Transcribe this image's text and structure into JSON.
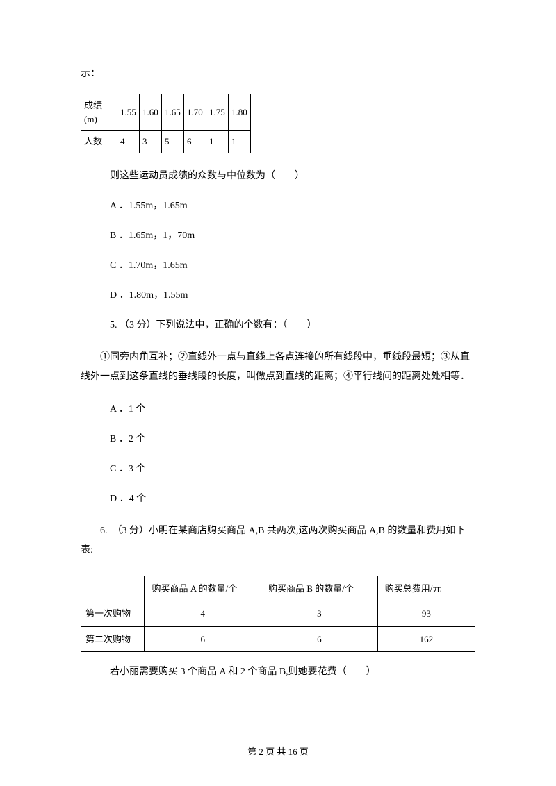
{
  "intro_fragment": "示：",
  "table1": {
    "row1_header": "成绩(m)",
    "row1_cells": [
      "1.55",
      "1.60",
      "1.65",
      "1.70",
      "1.75",
      "1.80"
    ],
    "row2_header": "人数",
    "row2_cells": [
      "4",
      "3",
      "5",
      "6",
      "1",
      "1"
    ]
  },
  "q_table1_prompt": "则这些运动员成绩的众数与中位数为（　　）",
  "q4_options": {
    "a": "A ．1.55m，1.65m",
    "b": "B ．1.65m，1，70m",
    "c": "C ．1.70m，1.65m",
    "d": "D ．1.80m，1.55m"
  },
  "q5_stem": "5. （3 分）下列说法中，正确的个数有：（　　）",
  "q5_para": "①同旁内角互补；②直线外一点与直线上各点连接的所有线段中，垂线段最短；③从直线外一点到这条直线的垂线段的长度，叫做点到直线的距离；④平行线间的距离处处相等．",
  "q5_options": {
    "a": "A ．1 个",
    "b": "B ．2 个",
    "c": "C ．3 个",
    "d": "D ．4 个"
  },
  "q6_stem": "6.　（3 分）小明在某商店购买商品 A,B 共两次,这两次购买商品 A,B 的数量和费用如下表:",
  "table2": {
    "headers": [
      "",
      "购买商品 A 的数量/个",
      "购买商品 B 的数量/个",
      "购买总费用/元"
    ],
    "rows": [
      [
        "第一次购物",
        "4",
        "3",
        "93"
      ],
      [
        "第二次购物",
        "6",
        "6",
        "162"
      ]
    ]
  },
  "q6_followup": "若小丽需要购买 3 个商品 A 和 2 个商品 B,则她要花费（　　）",
  "footer": "第 2 页 共 16 页"
}
